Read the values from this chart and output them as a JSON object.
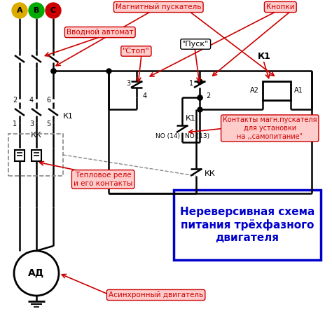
{
  "background_color": "#ffffff",
  "title_text": "Нереверсивная схема\nпитания трёхфазного\nдвигателя",
  "title_color": "#0000cc",
  "title_box_color": "#0000cc",
  "labels": {
    "mag_pusk": "Магнитный пускатель",
    "knopki": "Кнопки",
    "vvodnoy": "Вводной автомат",
    "stop": "\"Стоп\"",
    "pusk": "\"Пуск\"",
    "k1_top": "К1",
    "k1_mid": "К1",
    "kk_ctrl": "КК",
    "kk_main": "КК",
    "kontakty": "Контакты магн.пускателя\nдля установки\nна ,,самопитание\"",
    "teplovoe": "Тепловое реле\nи его контакты",
    "asinhr": "Асинхронный двигатель",
    "ad": "АД",
    "a_phase": "A",
    "b_phase": "B",
    "c_phase": "C",
    "no14": "NO (14)",
    "no13": "NO (13)",
    "num2": "2",
    "num4": "4",
    "num6": "6",
    "num1": "1",
    "num3": "3",
    "num5": "5",
    "lbl3": "3",
    "lbl4": "4",
    "lbl1": "1",
    "lbl2": "2",
    "a2": "A2",
    "a1": "A1"
  },
  "phase_colors": [
    "#ddaa00",
    "#00aa00",
    "#cc0000"
  ],
  "line_color": "#000000",
  "red_color": "#cc0000",
  "arrow_color": "#cc0000",
  "gray_color": "#888888"
}
